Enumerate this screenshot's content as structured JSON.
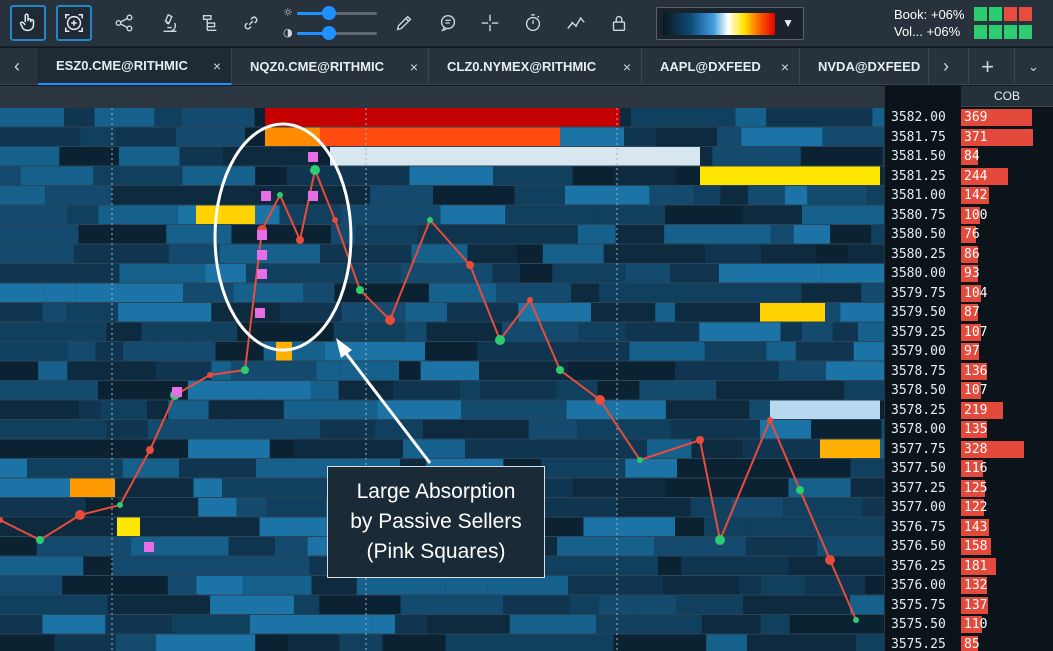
{
  "toolbar": {
    "tools": [
      {
        "name": "pointer-tool-icon",
        "active": true
      },
      {
        "name": "crosshair-zoom-tool-icon",
        "active": true
      },
      {
        "name": "share-icon",
        "active": false
      },
      {
        "name": "microscope-icon",
        "active": false
      },
      {
        "name": "layers-icon",
        "active": false
      },
      {
        "name": "link-icon",
        "active": false
      }
    ],
    "brightness_level": 0.4,
    "contrast_level": 0.4,
    "stats": {
      "book_label": "Book: +06%",
      "vol_label": "Vol... +06%",
      "book_cells": [
        "#2ecc71",
        "#2ecc71",
        "#e74c3c",
        "#e74c3c"
      ],
      "vol_cells": [
        "#2ecc71",
        "#2ecc71",
        "#2ecc71",
        "#2ecc71"
      ]
    }
  },
  "tabs": [
    {
      "label": "ESZ0.CME@RITHMIC",
      "active": true
    },
    {
      "label": "NQZ0.CME@RITHMIC",
      "active": false
    },
    {
      "label": "CLZ0.NYMEX@RITHMIC",
      "active": false
    },
    {
      "label": "AAPL@DXFEED",
      "active": false
    },
    {
      "label": "NVDA@DXFEED",
      "active": false
    }
  ],
  "tab_close_glyph": "×",
  "cob_header": "COB",
  "ladder": [
    {
      "price": "3582.00",
      "cob": "369",
      "ratio": 0.77
    },
    {
      "price": "3581.75",
      "cob": "371",
      "ratio": 0.78
    },
    {
      "price": "3581.50",
      "cob": "84",
      "ratio": 0.18
    },
    {
      "price": "3581.25",
      "cob": "244",
      "ratio": 0.51
    },
    {
      "price": "3581.00",
      "cob": "142",
      "ratio": 0.3
    },
    {
      "price": "3580.75",
      "cob": "100",
      "ratio": 0.21
    },
    {
      "price": "3580.50",
      "cob": "76",
      "ratio": 0.16
    },
    {
      "price": "3580.25",
      "cob": "86",
      "ratio": 0.18
    },
    {
      "price": "3580.00",
      "cob": "93",
      "ratio": 0.19
    },
    {
      "price": "3579.75",
      "cob": "104",
      "ratio": 0.22
    },
    {
      "price": "3579.50",
      "cob": "87",
      "ratio": 0.18
    },
    {
      "price": "3579.25",
      "cob": "107",
      "ratio": 0.22
    },
    {
      "price": "3579.00",
      "cob": "97",
      "ratio": 0.2
    },
    {
      "price": "3578.75",
      "cob": "136",
      "ratio": 0.28
    },
    {
      "price": "3578.50",
      "cob": "107",
      "ratio": 0.22
    },
    {
      "price": "3578.25",
      "cob": "219",
      "ratio": 0.46
    },
    {
      "price": "3578.00",
      "cob": "135",
      "ratio": 0.28
    },
    {
      "price": "3577.75",
      "cob": "328",
      "ratio": 0.68
    },
    {
      "price": "3577.50",
      "cob": "116",
      "ratio": 0.24
    },
    {
      "price": "3577.25",
      "cob": "125",
      "ratio": 0.26
    },
    {
      "price": "3577.00",
      "cob": "122",
      "ratio": 0.25
    },
    {
      "price": "3576.75",
      "cob": "143",
      "ratio": 0.3
    },
    {
      "price": "3576.50",
      "cob": "158",
      "ratio": 0.33
    },
    {
      "price": "3576.25",
      "cob": "181",
      "ratio": 0.38
    },
    {
      "price": "3576.00",
      "cob": "132",
      "ratio": 0.28
    },
    {
      "price": "3575.75",
      "cob": "137",
      "ratio": 0.29
    },
    {
      "price": "3575.50",
      "cob": "110",
      "ratio": 0.23
    },
    {
      "price": "3575.25",
      "cob": "85",
      "ratio": 0.18
    }
  ],
  "annotation": {
    "lines": [
      "Large Absorption",
      "by Passive Sellers",
      "(Pink Squares)"
    ]
  },
  "colors": {
    "accent": "#1e90ff",
    "buy": "#2ecc71",
    "sell": "#e74c3c",
    "absorption_marker": "#e86ee8"
  }
}
